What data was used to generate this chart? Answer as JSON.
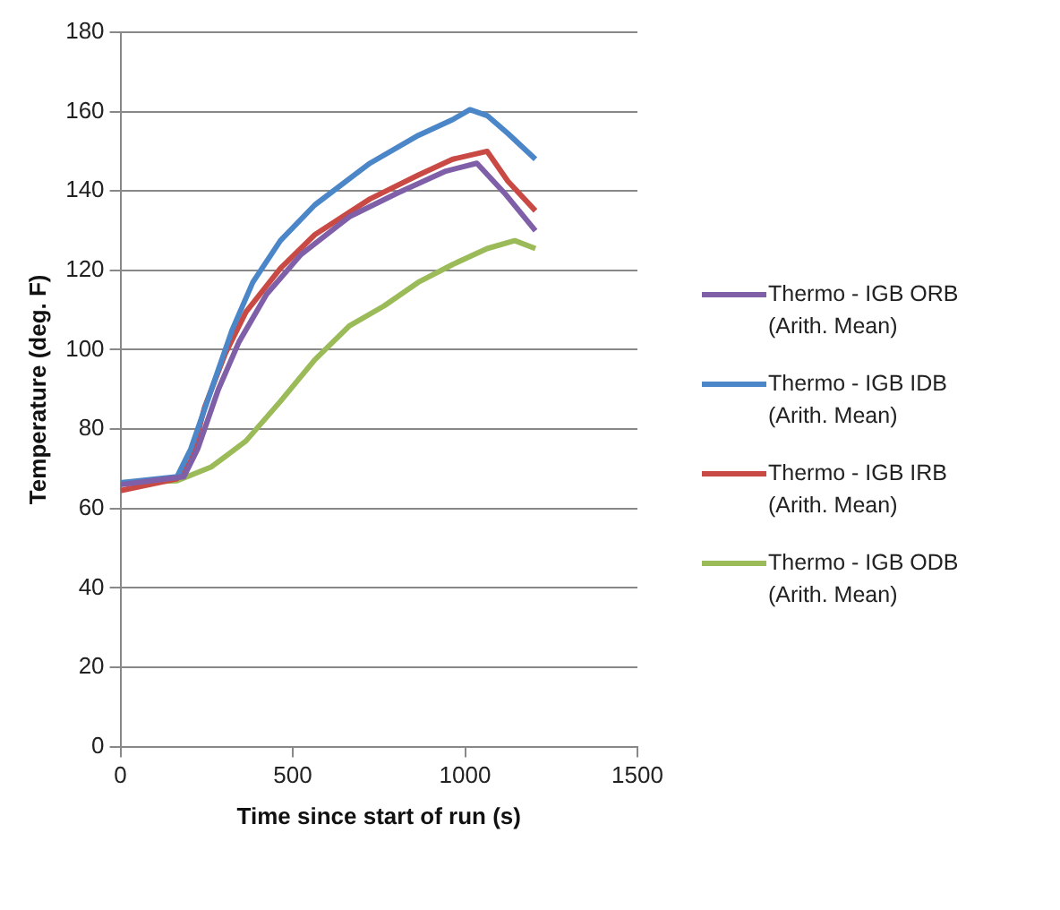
{
  "chart_data": {
    "type": "line",
    "xlabel": "Time since start of run (s)",
    "ylabel": "Temperature (deg. F)",
    "xlim": [
      0,
      1500
    ],
    "xticks": [
      0,
      500,
      1000,
      1500
    ],
    "ylim": [
      0,
      180
    ],
    "yticks": [
      0,
      20,
      40,
      60,
      80,
      100,
      120,
      140,
      160,
      180
    ],
    "grid": "y",
    "legend": "right",
    "marker": "none",
    "line_style": "solid",
    "series": [
      {
        "name": "Thermo - IGB ORB (Arith. Mean)",
        "color": "#7f5fa8",
        "x": [
          0,
          184,
          224,
          284,
          344,
          424,
          524,
          664,
          804,
          944,
          1034,
          1114,
          1204
        ],
        "values": [
          66,
          68,
          75,
          90,
          102,
          114,
          124,
          133.5,
          139.5,
          145,
          147,
          139.5,
          130
        ]
      },
      {
        "name": "Thermo - IGB IDB (Arith. Mean)",
        "color": "#4a86c8",
        "x": [
          0,
          164,
          204,
          264,
          324,
          384,
          464,
          564,
          724,
          864,
          964,
          1014,
          1064,
          1124,
          1204
        ],
        "values": [
          66.5,
          68,
          75,
          90,
          105,
          117,
          127.5,
          136.5,
          147,
          154,
          158,
          160.5,
          159,
          154.5,
          148
        ]
      },
      {
        "name": "Thermo - IGB IRB (Arith. Mean)",
        "color": "#c94a45",
        "x": [
          0,
          164,
          204,
          244,
          304,
          364,
          464,
          564,
          724,
          864,
          964,
          1064,
          1124,
          1204
        ],
        "values": [
          64.5,
          67.5,
          72,
          85.5,
          99,
          109.5,
          120.5,
          129,
          138,
          144,
          148,
          150,
          142.5,
          135
        ]
      },
      {
        "name": "Thermo - IGB ODB (Arith. Mean)",
        "color": "#9bbb59",
        "x": [
          0,
          164,
          264,
          364,
          464,
          564,
          664,
          764,
          864,
          964,
          1064,
          1144,
          1204
        ],
        "values": [
          66.5,
          67,
          70.5,
          77,
          87,
          97.5,
          106,
          111,
          117,
          121.5,
          125.5,
          127.5,
          125.5
        ]
      }
    ]
  }
}
